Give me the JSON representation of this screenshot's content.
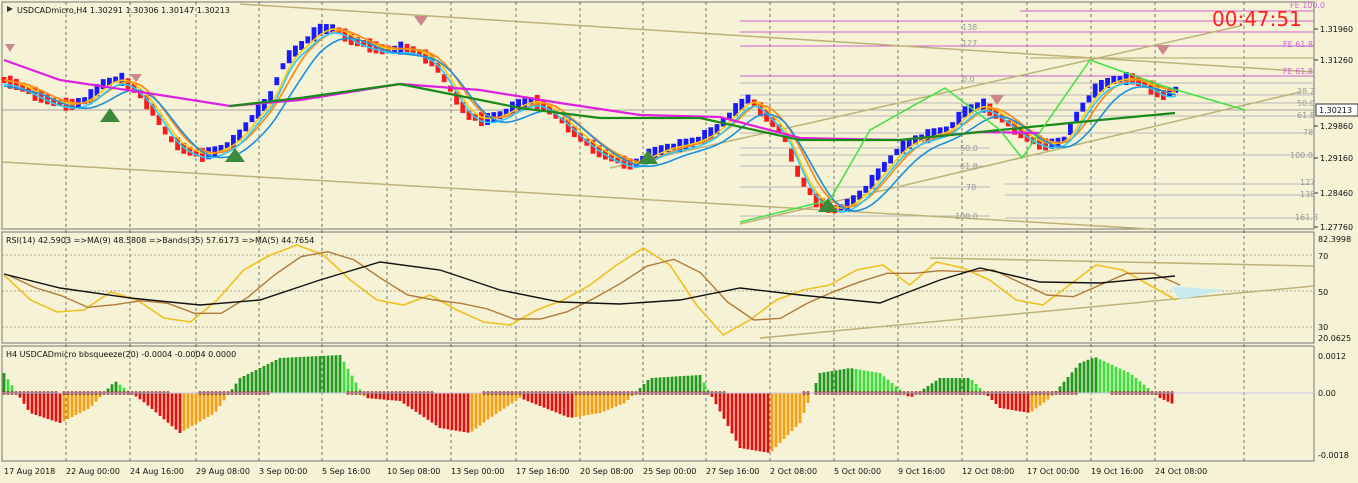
{
  "main": {
    "title": "USDCADmicro,H4  1.30291 1.30306 1.30147 1.30213",
    "timer": "00:47:51",
    "current_price": "1.30213",
    "price_ticks": [
      "1.31960",
      "1.31260",
      "1.30213",
      "1.29860",
      "1.29160",
      "1.28460",
      "1.27760"
    ],
    "fib_labels": [
      "FE 100.0",
      "FE 61.8",
      "FE 61.8",
      "138",
      "127",
      "0.0",
      "38.2",
      "50.0",
      "61.8",
      "78",
      "100.0",
      "127",
      "138",
      "161.8",
      "50.0",
      "61.8",
      "78",
      "100.0"
    ]
  },
  "rsi": {
    "title": "RSI(14) 42.5903  =>MA(9) 48.5808  =>Bands(35) 57.6173  =>MA(5) 44.7654",
    "ticks": [
      "82.3998",
      "70",
      "50",
      "30",
      "20.0625"
    ]
  },
  "squeeze": {
    "title": "H4 USDCADmicro bbsqueeze(20) -0.0004 -0.0004 0.0000",
    "ticks": [
      "0.0012",
      "0.00",
      "-0.0018"
    ]
  },
  "time_axis": [
    "17 Aug 2018",
    "22 Aug 00:00",
    "24 Aug 16:00",
    "29 Aug 08:00",
    "3 Sep 00:00",
    "5 Sep 16:00",
    "10 Sep 08:00",
    "13 Sep 00:00",
    "17 Sep 16:00",
    "20 Sep 08:00",
    "25 Sep 00:00",
    "27 Sep 16:00",
    "2 Oct 08:00",
    "5 Oct 00:00",
    "9 Oct 16:00",
    "12 Oct 08:00",
    "17 Oct 00:00",
    "19 Oct 16:00",
    "24 Oct 08:00"
  ],
  "colors": {
    "bg": "#f6f2d6",
    "bull": "#1a1aff",
    "bear": "#ff1a1a",
    "fast_ma": "#22ccff",
    "mid_ma": "#1a90e0",
    "orange_ma": "#ff8c1a",
    "gold_ma": "#ffc800",
    "slow_ma": "#188a18",
    "magenta_ma": "#e020e0",
    "channel": "#bdb278",
    "zigzag": "#40e040",
    "timer": "#ff2020"
  }
}
